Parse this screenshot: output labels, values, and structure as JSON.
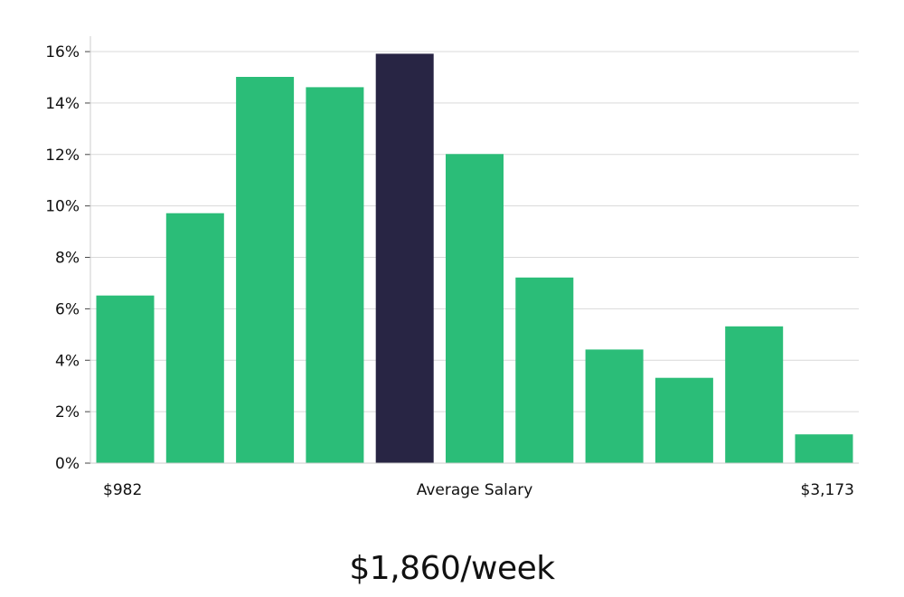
{
  "chart_data": {
    "type": "bar",
    "values": [
      6.5,
      9.7,
      15.0,
      14.6,
      15.9,
      12.0,
      7.2,
      4.4,
      3.3,
      5.3,
      1.1
    ],
    "highlight_index": 4,
    "ylim": [
      0,
      16.6
    ],
    "yticks": [
      0,
      2,
      4,
      6,
      8,
      10,
      12,
      14,
      16
    ],
    "ytick_suffix": "%",
    "grid": true,
    "x_min_label": "$982",
    "x_center_label": "Average Salary",
    "x_max_label": "$3,173",
    "colors": {
      "bar": "#2bbd78",
      "highlight": "#282544",
      "grid": "#d9d9d9",
      "axis": "#cccccc"
    }
  },
  "headline": "$1,860/week"
}
